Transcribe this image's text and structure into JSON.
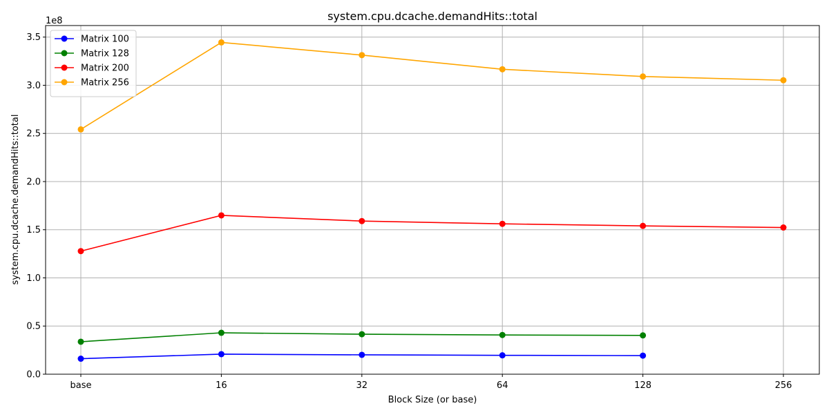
{
  "chart_data": {
    "type": "line",
    "title": "system.cpu.dcache.demandHits::total",
    "xlabel": "Block Size (or base)",
    "ylabel": "system.cpu.dcache.demandHits::total",
    "y_offset_label": "1e8",
    "y_scale_factor": 100000000,
    "categories": [
      "base",
      "16",
      "32",
      "64",
      "128",
      "256"
    ],
    "ylim": [
      0,
      362000000
    ],
    "yticks": [
      0,
      50000000,
      100000000,
      150000000,
      200000000,
      250000000,
      300000000,
      350000000
    ],
    "ytick_labels": [
      "0.0",
      "0.5",
      "1.0",
      "1.5",
      "2.0",
      "2.5",
      "3.0",
      "3.5"
    ],
    "grid": true,
    "legend_position": "upper-left",
    "series": [
      {
        "name": "Matrix 100",
        "color": "#0000ff",
        "values": [
          16100000,
          20800000,
          20100000,
          19600000,
          19300000,
          null
        ]
      },
      {
        "name": "Matrix 128",
        "color": "#008000",
        "values": [
          33700000,
          43000000,
          41500000,
          40700000,
          40300000,
          null
        ]
      },
      {
        "name": "Matrix 200",
        "color": "#ff0000",
        "values": [
          127800000,
          164900000,
          159000000,
          156100000,
          154000000,
          152300000
        ]
      },
      {
        "name": "Matrix 256",
        "color": "#ffa500",
        "values": [
          254200000,
          344500000,
          331300000,
          316600000,
          309100000,
          305200000
        ]
      }
    ]
  }
}
